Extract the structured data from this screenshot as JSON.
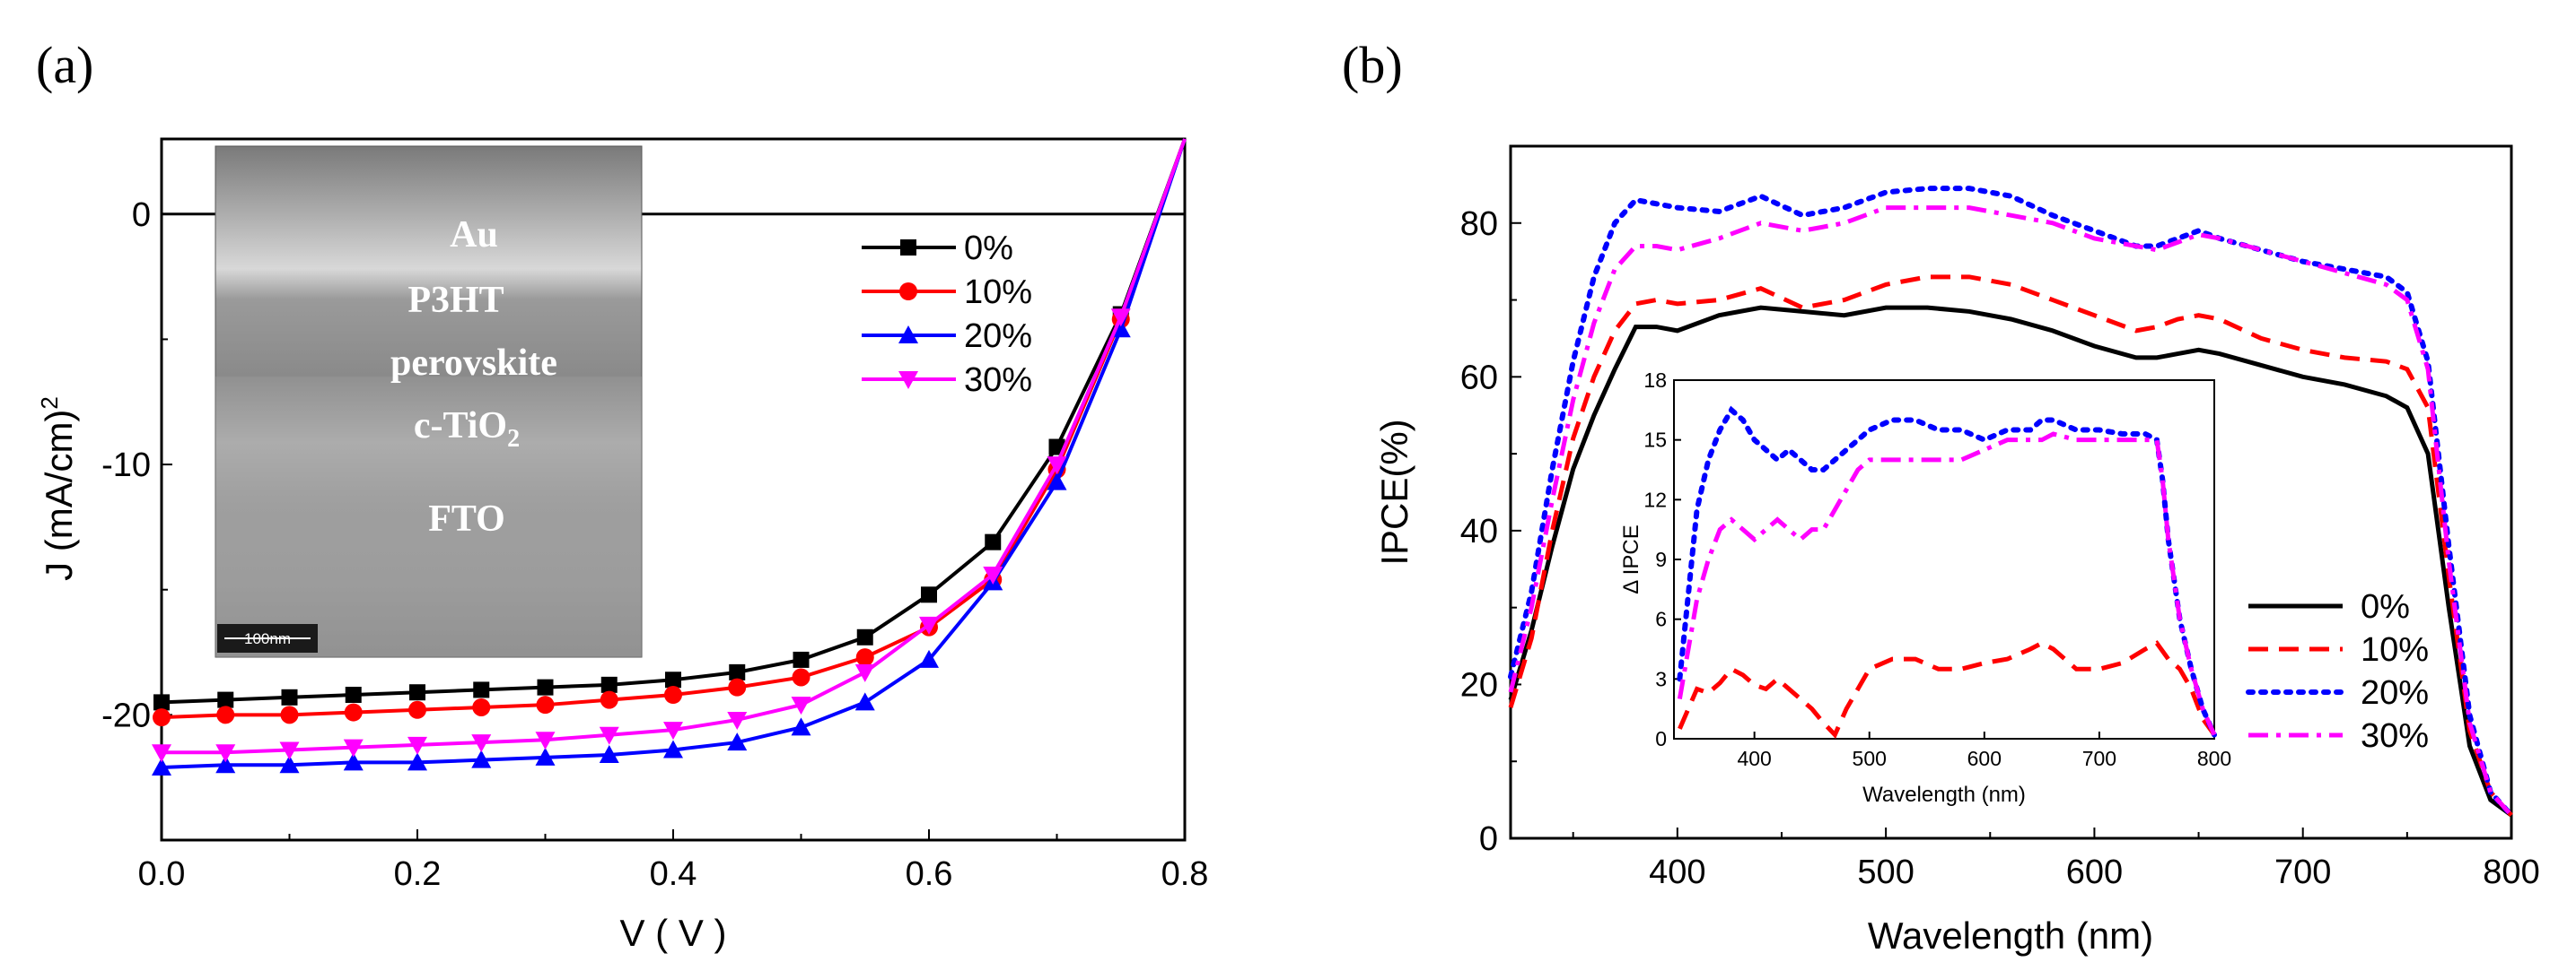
{
  "colors": {
    "s0": "#000000",
    "s10": "#ff0000",
    "s20": "#0000ff",
    "s30": "#ff00ff"
  },
  "chart_data": [
    {
      "id": "a",
      "panel_label": "(a)",
      "type": "line",
      "xlabel": "V ( V )",
      "ylabel": "J (mA/cm)",
      "ylabel_sup": "2",
      "xlim": [
        0,
        0.8
      ],
      "ylim": [
        -25,
        3
      ],
      "xticks": [
        0.0,
        0.2,
        0.4,
        0.6,
        0.8
      ],
      "xtick_labels": [
        "0.0",
        "0.2",
        "0.4",
        "0.6",
        "0.8"
      ],
      "yticks": [
        0,
        -10,
        -20
      ],
      "ytick_labels": [
        "0",
        "-10",
        "-20"
      ],
      "x": [
        0,
        0.05,
        0.1,
        0.15,
        0.2,
        0.25,
        0.3,
        0.35,
        0.4,
        0.45,
        0.5,
        0.55,
        0.6,
        0.65,
        0.7,
        0.75,
        0.8
      ],
      "series": [
        {
          "name": "0%",
          "marker": "square",
          "values": [
            -19.5,
            -19.4,
            -19.3,
            -19.2,
            -19.1,
            -19.0,
            -18.9,
            -18.8,
            -18.6,
            -18.3,
            -17.8,
            -16.9,
            -15.2,
            -13.1,
            -9.3,
            -4.0,
            3.0
          ]
        },
        {
          "name": "10%",
          "marker": "circle",
          "values": [
            -20.1,
            -20.0,
            -20.0,
            -19.9,
            -19.8,
            -19.7,
            -19.6,
            -19.4,
            -19.2,
            -18.9,
            -18.5,
            -17.7,
            -16.5,
            -14.6,
            -10.2,
            -4.2,
            3.0
          ]
        },
        {
          "name": "20%",
          "marker": "triangle-up",
          "values": [
            -22.1,
            -22.0,
            -22.0,
            -21.9,
            -21.9,
            -21.8,
            -21.7,
            -21.6,
            -21.4,
            -21.1,
            -20.5,
            -19.5,
            -17.8,
            -14.7,
            -10.7,
            -4.6,
            3.0
          ]
        },
        {
          "name": "30%",
          "marker": "triangle-down",
          "values": [
            -21.5,
            -21.5,
            -21.4,
            -21.3,
            -21.2,
            -21.1,
            -21.0,
            -20.8,
            -20.6,
            -20.2,
            -19.6,
            -18.3,
            -16.4,
            -14.4,
            -10.0,
            -4.1,
            3.0
          ]
        }
      ],
      "inset_image": {
        "layers": [
          "Au",
          "P3HT",
          "perovskite",
          "c-TiO",
          "FTO"
        ],
        "layer_sub": "2",
        "scale_bar": "100nm"
      }
    },
    {
      "id": "b",
      "panel_label": "(b)",
      "type": "line",
      "xlabel": "Wavelength (nm)",
      "ylabel": "IPCE(%)",
      "xlim": [
        320,
        800
      ],
      "ylim": [
        0,
        90
      ],
      "xticks": [
        400,
        500,
        600,
        700,
        800
      ],
      "xtick_labels": [
        "400",
        "500",
        "600",
        "700",
        "800"
      ],
      "yticks": [
        0,
        20,
        40,
        60,
        80
      ],
      "ytick_labels": [
        "0",
        "20",
        "40",
        "60",
        "80"
      ],
      "series": [
        {
          "name": "0%",
          "dash": "solid",
          "x": [
            320,
            330,
            340,
            350,
            360,
            370,
            380,
            390,
            400,
            420,
            440,
            460,
            480,
            500,
            520,
            540,
            560,
            580,
            600,
            620,
            630,
            640,
            650,
            660,
            680,
            700,
            720,
            740,
            750,
            760,
            770,
            780,
            790,
            800
          ],
          "values": [
            18,
            27,
            38,
            48,
            55,
            61,
            66.5,
            66.5,
            66,
            68,
            69,
            68.5,
            68,
            69,
            69,
            68.5,
            67.5,
            66,
            64,
            62.5,
            62.5,
            63,
            63.5,
            63,
            61.5,
            60,
            59,
            57.5,
            56,
            50,
            30,
            12,
            5,
            3
          ]
        },
        {
          "name": "10%",
          "dash": "dash",
          "x": [
            320,
            330,
            340,
            350,
            360,
            370,
            380,
            390,
            400,
            420,
            440,
            460,
            480,
            500,
            520,
            540,
            560,
            580,
            600,
            620,
            630,
            640,
            650,
            660,
            680,
            700,
            720,
            740,
            750,
            760,
            770,
            780,
            790,
            800
          ],
          "values": [
            17,
            26,
            40,
            52,
            60,
            66,
            69.5,
            70,
            69.5,
            70,
            71.5,
            69,
            70,
            72,
            73,
            73,
            72,
            70,
            68,
            66,
            66.5,
            67.5,
            68,
            67.5,
            65,
            63.5,
            62.5,
            62,
            61,
            56,
            34,
            14,
            6,
            3
          ]
        },
        {
          "name": "20%",
          "dash": "dot",
          "x": [
            320,
            330,
            340,
            350,
            360,
            370,
            380,
            390,
            400,
            420,
            440,
            460,
            480,
            500,
            520,
            540,
            560,
            580,
            600,
            620,
            630,
            640,
            650,
            660,
            680,
            700,
            720,
            740,
            750,
            760,
            770,
            780,
            790,
            800
          ],
          "values": [
            21,
            32,
            48,
            62,
            73,
            80,
            83,
            82.5,
            82,
            81.5,
            83.5,
            81,
            82,
            84,
            84.5,
            84.5,
            83.5,
            81,
            79,
            77,
            77,
            78,
            79,
            78,
            76.5,
            75,
            74,
            73,
            71,
            62,
            38,
            16,
            6,
            3
          ]
        },
        {
          "name": "30%",
          "dash": "dashdot",
          "x": [
            320,
            330,
            340,
            350,
            360,
            370,
            380,
            390,
            400,
            420,
            440,
            460,
            480,
            500,
            520,
            540,
            560,
            580,
            600,
            620,
            630,
            640,
            650,
            660,
            680,
            700,
            720,
            740,
            750,
            760,
            770,
            780,
            790,
            800
          ],
          "values": [
            19,
            30,
            44,
            57,
            67,
            74,
            77,
            77,
            76.5,
            78,
            80,
            79,
            80,
            82,
            82,
            82,
            81,
            80,
            78,
            77,
            76.5,
            77.5,
            78.5,
            78,
            76.5,
            75,
            73.5,
            72,
            70,
            61,
            36,
            15,
            6,
            3
          ]
        }
      ],
      "inset": {
        "type": "line",
        "xlabel": "Wavelength (nm)",
        "ylabel": "Δ IPCE",
        "xlim": [
          330,
          800
        ],
        "ylim": [
          0,
          18
        ],
        "xticks": [
          400,
          500,
          600,
          700,
          800
        ],
        "xtick_labels": [
          "400",
          "500",
          "600",
          "700",
          "800"
        ],
        "yticks": [
          0,
          3,
          6,
          9,
          12,
          15,
          18
        ],
        "ytick_labels": [
          "0",
          "3",
          "6",
          "9",
          "12",
          "15",
          "18"
        ],
        "series": [
          {
            "name": "10%",
            "dash": "dash",
            "x": [
              335,
              350,
              360,
              370,
              380,
              390,
              400,
              410,
              420,
              430,
              440,
              450,
              460,
              470,
              480,
              490,
              500,
              520,
              540,
              560,
              580,
              600,
              620,
              640,
              650,
              660,
              680,
              700,
              720,
              740,
              750,
              760,
              770,
              780,
              790,
              800
            ],
            "values": [
              0.5,
              2.5,
              2.3,
              2.8,
              3.5,
              3.2,
              2.7,
              2.5,
              3.0,
              2.5,
              2.0,
              1.5,
              0.8,
              0.2,
              1.5,
              2.5,
              3.5,
              4.0,
              4.0,
              3.5,
              3.5,
              3.8,
              4.0,
              4.5,
              4.8,
              4.5,
              3.5,
              3.5,
              3.8,
              4.5,
              4.8,
              4.0,
              3.5,
              2.5,
              1.0,
              0.2
            ]
          },
          {
            "name": "20%",
            "dash": "dot",
            "x": [
              335,
              350,
              360,
              370,
              380,
              390,
              400,
              410,
              420,
              430,
              440,
              450,
              460,
              470,
              480,
              490,
              500,
              520,
              540,
              560,
              580,
              600,
              620,
              640,
              650,
              660,
              680,
              700,
              720,
              740,
              750,
              755,
              760,
              770,
              780,
              790,
              800
            ],
            "values": [
              3.0,
              11.5,
              14.0,
              15.5,
              16.5,
              16.0,
              15.0,
              14.5,
              14.0,
              14.5,
              14.0,
              13.5,
              13.5,
              14.0,
              14.5,
              15.0,
              15.5,
              16.0,
              16.0,
              15.5,
              15.5,
              15.0,
              15.5,
              15.5,
              16.0,
              16.0,
              15.5,
              15.5,
              15.3,
              15.3,
              15.0,
              13.0,
              10.0,
              6.0,
              3.5,
              1.5,
              0.2
            ]
          },
          {
            "name": "30%",
            "dash": "dashdot",
            "x": [
              335,
              350,
              360,
              370,
              380,
              390,
              400,
              410,
              420,
              430,
              440,
              450,
              460,
              470,
              480,
              490,
              500,
              520,
              540,
              560,
              580,
              600,
              620,
              640,
              650,
              660,
              680,
              700,
              720,
              740,
              750,
              755,
              760,
              770,
              780,
              790,
              800
            ],
            "values": [
              2.0,
              7.0,
              9.0,
              10.5,
              11.0,
              10.5,
              10.0,
              10.5,
              11.0,
              10.5,
              10.0,
              10.5,
              10.5,
              11.5,
              12.5,
              13.5,
              14.0,
              14.0,
              14.0,
              14.0,
              14.0,
              14.5,
              15.0,
              15.0,
              15.0,
              15.3,
              15.0,
              15.0,
              15.0,
              15.0,
              15.0,
              13.0,
              10.0,
              6.0,
              3.5,
              1.5,
              0.2
            ]
          }
        ]
      }
    }
  ]
}
